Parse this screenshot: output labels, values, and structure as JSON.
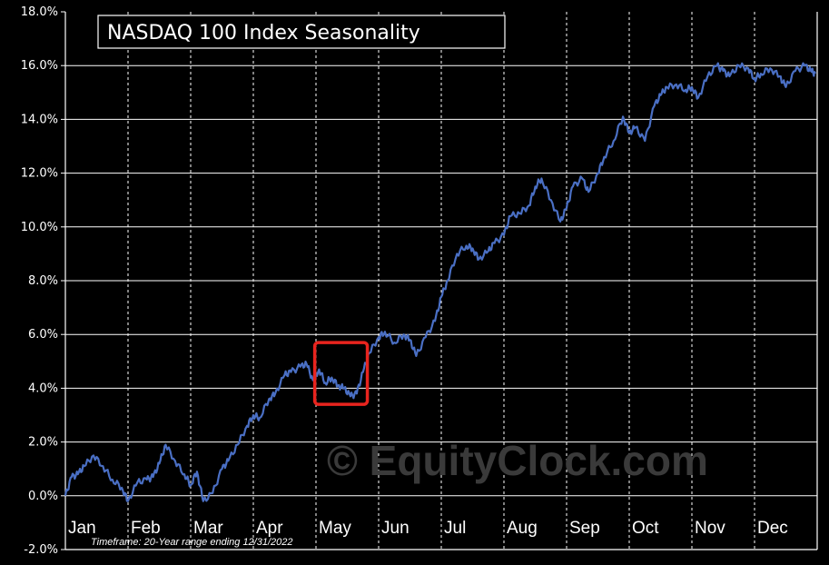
{
  "chart_data": {
    "type": "line",
    "title": "NASDAQ 100 Index Seasonality",
    "footnote": "Timeframe: 20-Year range ending 12/31/2022",
    "watermark": "© EquityClock.com",
    "xlabel": "",
    "ylabel": "",
    "ylim": [
      -2.0,
      18.0
    ],
    "y_ticks": [
      "18.0%",
      "16.0%",
      "14.0%",
      "12.0%",
      "10.0%",
      "8.0%",
      "6.0%",
      "4.0%",
      "2.0%",
      "0.0%",
      "-2.0%"
    ],
    "categories": [
      "Jan",
      "Feb",
      "Mar",
      "Apr",
      "May",
      "Jun",
      "Jul",
      "Aug",
      "Sep",
      "Oct",
      "Nov",
      "Dec"
    ],
    "grid": true,
    "line_color": "#4a6fc4",
    "highlight_color": "#e8241e",
    "highlight_range": {
      "month_start": 3.98,
      "month_end": 4.82,
      "y_low": 3.4,
      "y_high": 5.7
    },
    "series": [
      {
        "name": "",
        "x": [
          0.0,
          0.1,
          0.2,
          0.3,
          0.45,
          0.6,
          0.75,
          0.9,
          1.0,
          1.15,
          1.3,
          1.4,
          1.5,
          1.6,
          1.75,
          1.9,
          2.0,
          2.1,
          2.2,
          2.35,
          2.5,
          2.6,
          2.75,
          2.9,
          3.0,
          3.1,
          3.25,
          3.35,
          3.5,
          3.6,
          3.75,
          3.85,
          3.95,
          4.05,
          4.15,
          4.25,
          4.35,
          4.45,
          4.55,
          4.65,
          4.75,
          4.85,
          5.0,
          5.1,
          5.25,
          5.4,
          5.5,
          5.6,
          5.75,
          5.9,
          6.0,
          6.1,
          6.25,
          6.4,
          6.5,
          6.6,
          6.75,
          6.85,
          7.0,
          7.1,
          7.25,
          7.4,
          7.5,
          7.6,
          7.75,
          7.9,
          8.0,
          8.1,
          8.25,
          8.35,
          8.5,
          8.6,
          8.75,
          8.9,
          9.0,
          9.1,
          9.25,
          9.4,
          9.5,
          9.6,
          9.75,
          9.9,
          10.0,
          10.1,
          10.25,
          10.4,
          10.5,
          10.6,
          10.75,
          10.9,
          11.0,
          11.1,
          11.25,
          11.4,
          11.5,
          11.65,
          11.8,
          11.9,
          11.97
        ],
        "values": [
          0.0,
          0.7,
          0.8,
          1.1,
          1.5,
          1.1,
          0.6,
          0.3,
          -0.2,
          0.5,
          0.6,
          0.7,
          1.2,
          1.9,
          1.3,
          0.8,
          0.4,
          0.9,
          -0.2,
          0.1,
          1.0,
          1.3,
          1.9,
          2.6,
          3.0,
          2.9,
          3.6,
          3.8,
          4.5,
          4.6,
          4.8,
          4.9,
          4.3,
          4.7,
          4.2,
          4.4,
          4.1,
          4.0,
          3.7,
          3.8,
          4.6,
          5.3,
          5.9,
          6.1,
          5.7,
          6.0,
          5.8,
          5.2,
          5.9,
          6.5,
          7.4,
          8.0,
          9.0,
          9.3,
          9.2,
          8.8,
          9.1,
          9.4,
          9.7,
          10.4,
          10.5,
          10.8,
          11.5,
          11.8,
          11.0,
          10.2,
          10.7,
          11.5,
          11.8,
          11.3,
          12.0,
          12.6,
          13.2,
          14.1,
          13.5,
          13.7,
          13.2,
          14.5,
          14.9,
          15.2,
          15.3,
          15.1,
          15.2,
          14.8,
          15.6,
          16.0,
          15.8,
          15.6,
          16.0,
          15.9,
          15.5,
          15.7,
          15.9,
          15.6,
          15.2,
          15.8,
          16.0,
          15.8,
          15.7
        ]
      }
    ]
  }
}
